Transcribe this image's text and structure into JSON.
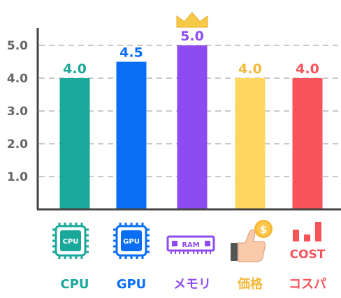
{
  "chart_data": {
    "type": "bar",
    "title": "",
    "xlabel": "",
    "ylabel": "",
    "ylim": [
      0,
      5.5
    ],
    "yticks": [
      "1.0",
      "2.0",
      "3.0",
      "4.0",
      "5.0"
    ],
    "grid": true,
    "categories": [
      "CPU",
      "GPU",
      "メモリ",
      "価格",
      "コスパ"
    ],
    "values": [
      4.0,
      4.5,
      5.0,
      4.0,
      4.0
    ],
    "value_labels": [
      "4.0",
      "4.5",
      "5.0",
      "4.0",
      "4.0"
    ],
    "colors": [
      "#1aa89a",
      "#0a6ef5",
      "#8e4cf0",
      "#ffd75e",
      "#f9535a"
    ],
    "label_colors": [
      "#1aa89a",
      "#0a6ef5",
      "#8e4cf0",
      "#f2b93a",
      "#f9535a"
    ],
    "icons": [
      {
        "name": "cpu-chip-icon",
        "text": "CPU"
      },
      {
        "name": "gpu-chip-icon",
        "text": "GPU"
      },
      {
        "name": "ram-module-icon",
        "text": "RAM"
      },
      {
        "name": "thumbs-up-coin-icon",
        "text": "$"
      },
      {
        "name": "cost-bars-icon",
        "text": "COST"
      }
    ],
    "crown_on": "メモリ"
  }
}
